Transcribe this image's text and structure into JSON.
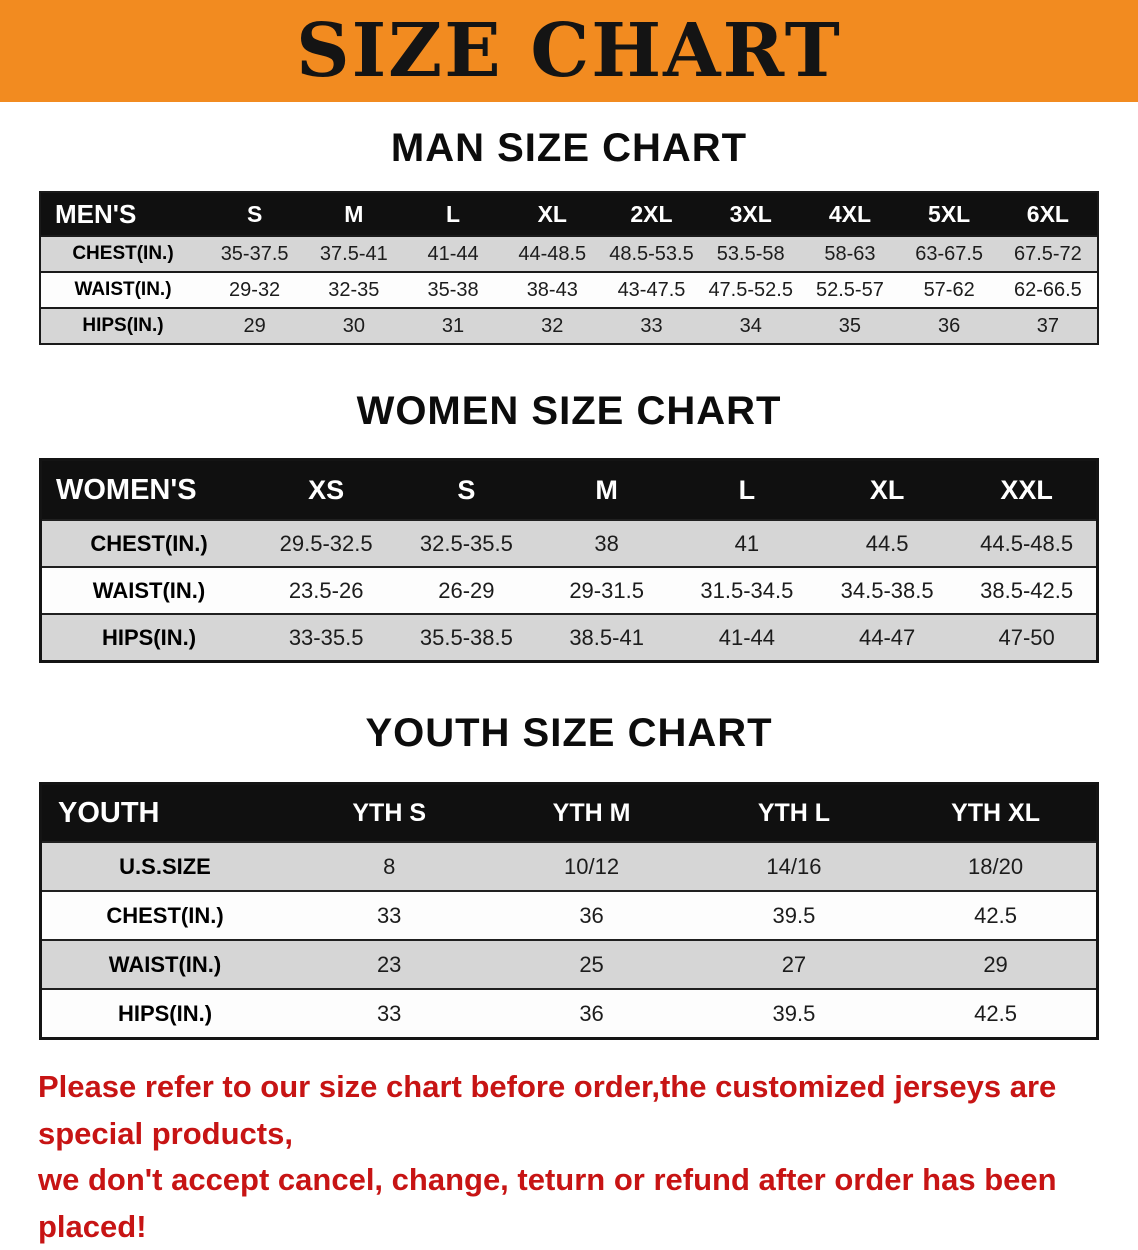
{
  "banner": {
    "title": "SIZE CHART",
    "bg_color": "#f28b20",
    "text_color": "#141414"
  },
  "sections": [
    {
      "heading": "MAN SIZE CHART",
      "label": "MEN'S",
      "columns": [
        "S",
        "M",
        "L",
        "XL",
        "2XL",
        "3XL",
        "4XL",
        "5XL",
        "6XL"
      ],
      "rows": [
        {
          "label": "CHEST(IN.)",
          "values": [
            "35-37.5",
            "37.5-41",
            "41-44",
            "44-48.5",
            "48.5-53.5",
            "53.5-58",
            "58-63",
            "63-67.5",
            "67.5-72"
          ]
        },
        {
          "label": "WAIST(IN.)",
          "values": [
            "29-32",
            "32-35",
            "35-38",
            "38-43",
            "43-47.5",
            "47.5-52.5",
            "52.5-57",
            "57-62",
            "62-66.5"
          ]
        },
        {
          "label": "HIPS(IN.)",
          "values": [
            "29",
            "30",
            "31",
            "32",
            "33",
            "34",
            "35",
            "36",
            "37"
          ]
        }
      ]
    },
    {
      "heading": "WOMEN SIZE CHART",
      "label": "WOMEN'S",
      "columns": [
        "XS",
        "S",
        "M",
        "L",
        "XL",
        "XXL"
      ],
      "rows": [
        {
          "label": "CHEST(IN.)",
          "values": [
            "29.5-32.5",
            "32.5-35.5",
            "38",
            "41",
            "44.5",
            "44.5-48.5"
          ]
        },
        {
          "label": "WAIST(IN.)",
          "values": [
            "23.5-26",
            "26-29",
            "29-31.5",
            "31.5-34.5",
            "34.5-38.5",
            "38.5-42.5"
          ]
        },
        {
          "label": "HIPS(IN.)",
          "values": [
            "33-35.5",
            "35.5-38.5",
            "38.5-41",
            "41-44",
            "44-47",
            "47-50"
          ]
        }
      ]
    },
    {
      "heading": "YOUTH SIZE CHART",
      "label": "YOUTH",
      "columns": [
        "YTH S",
        "YTH M",
        "YTH L",
        "YTH XL"
      ],
      "rows": [
        {
          "label": "U.S.SIZE",
          "values": [
            "8",
            "10/12",
            "14/16",
            "18/20"
          ]
        },
        {
          "label": "CHEST(IN.)",
          "values": [
            "33",
            "36",
            "39.5",
            "42.5"
          ]
        },
        {
          "label": "WAIST(IN.)",
          "values": [
            "23",
            "25",
            "27",
            "29"
          ]
        },
        {
          "label": "HIPS(IN.)",
          "values": [
            "33",
            "36",
            "39.5",
            "42.5"
          ]
        }
      ]
    }
  ],
  "footer": {
    "text_color": "#c71414",
    "lines": [
      "Please refer to our size chart before order,the customized jerseys are special products,",
      "we don't accept cancel, change, teturn or refund after order has been placed!"
    ]
  }
}
